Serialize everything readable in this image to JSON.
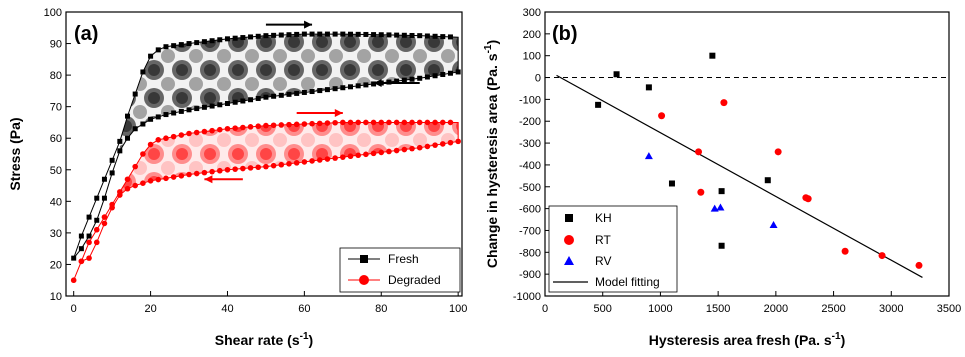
{
  "chart_data": [
    {
      "type": "line",
      "panel_label": "(a)",
      "xlabel": "Shear rate (s",
      "xlabel_sup": "-1",
      "xlabel_end": ")",
      "ylabel": "Stress (Pa)",
      "xlim": [
        -2,
        101
      ],
      "ylim": [
        10,
        100
      ],
      "xticks": [
        0,
        20,
        40,
        60,
        80,
        100
      ],
      "yticks": [
        10,
        20,
        30,
        40,
        50,
        60,
        70,
        80,
        90,
        100
      ],
      "legend_position": "bottom-right",
      "series": [
        {
          "name": "Fresh",
          "color": "#000000",
          "marker": "square",
          "up": [
            [
              0,
              22
            ],
            [
              2,
              29
            ],
            [
              4,
              35
            ],
            [
              6,
              41
            ],
            [
              8,
              47
            ],
            [
              10,
              53
            ],
            [
              12,
              59
            ],
            [
              14,
              67
            ],
            [
              16,
              74
            ],
            [
              18,
              81
            ],
            [
              20,
              86
            ],
            [
              22,
              88
            ],
            [
              24,
              89
            ],
            [
              30,
              90
            ],
            [
              40,
              91.5
            ],
            [
              50,
              92.5
            ],
            [
              60,
              93
            ],
            [
              70,
              93
            ],
            [
              80,
              92.8
            ],
            [
              90,
              92.5
            ],
            [
              100,
              92
            ]
          ],
          "down": [
            [
              100,
              81
            ],
            [
              90,
              79
            ],
            [
              80,
              77.5
            ],
            [
              70,
              76
            ],
            [
              60,
              74.5
            ],
            [
              50,
              73
            ],
            [
              40,
              71
            ],
            [
              30,
              69
            ],
            [
              24,
              67.5
            ],
            [
              20,
              66
            ],
            [
              16,
              63
            ],
            [
              14,
              60
            ],
            [
              12,
              56
            ],
            [
              10,
              49
            ],
            [
              8,
              41
            ],
            [
              6,
              34
            ],
            [
              4,
              29
            ],
            [
              2,
              25
            ],
            [
              0,
              22
            ]
          ]
        },
        {
          "name": "Degraded",
          "color": "#ff0000",
          "marker": "circle",
          "up": [
            [
              0,
              15
            ],
            [
              2,
              21
            ],
            [
              4,
              27
            ],
            [
              6,
              31
            ],
            [
              8,
              35
            ],
            [
              10,
              39
            ],
            [
              12,
              43
            ],
            [
              14,
              47
            ],
            [
              16,
              51
            ],
            [
              18,
              55
            ],
            [
              20,
              58
            ],
            [
              22,
              59.5
            ],
            [
              24,
              60
            ],
            [
              30,
              61.5
            ],
            [
              40,
              63
            ],
            [
              50,
              64
            ],
            [
              60,
              64.5
            ],
            [
              70,
              65
            ],
            [
              80,
              65
            ],
            [
              90,
              65
            ],
            [
              100,
              65
            ]
          ],
          "down": [
            [
              100,
              59
            ],
            [
              90,
              57
            ],
            [
              80,
              55.5
            ],
            [
              70,
              54
            ],
            [
              60,
              52.5
            ],
            [
              50,
              51
            ],
            [
              40,
              50
            ],
            [
              30,
              48.5
            ],
            [
              20,
              46.5
            ],
            [
              16,
              45
            ],
            [
              14,
              44
            ],
            [
              12,
              42
            ],
            [
              10,
              38
            ],
            [
              8,
              33
            ],
            [
              6,
              27
            ],
            [
              4,
              22
            ],
            [
              2,
              21
            ],
            [
              0,
              15
            ]
          ]
        }
      ],
      "arrows": [
        {
          "color": "#000000",
          "x": [
            50,
            62
          ],
          "y": 96,
          "direction": "right"
        },
        {
          "color": "#000000",
          "x": [
            78,
            90
          ],
          "y": 77.5,
          "direction": "left"
        },
        {
          "color": "#ff0000",
          "x": [
            58,
            70
          ],
          "y": 68,
          "direction": "right"
        },
        {
          "color": "#ff0000",
          "x": [
            34,
            44
          ],
          "y": 47,
          "direction": "left"
        }
      ]
    },
    {
      "type": "scatter",
      "panel_label": "(b)",
      "xlabel": "Hysteresis area fresh (Pa. s",
      "xlabel_sup": "-1",
      "xlabel_end": ")",
      "ylabel": "Change in hysteresis area (Pa. s",
      "ylabel_sup": "-1",
      "ylabel_end": ")",
      "xlim": [
        0,
        3500
      ],
      "ylim": [
        -1000,
        300
      ],
      "xticks": [
        0,
        500,
        1000,
        1500,
        2000,
        2500,
        3000,
        3500
      ],
      "yticks": [
        300,
        200,
        100,
        0,
        -100,
        -200,
        -300,
        -400,
        -500,
        -600,
        -700,
        -800,
        -900,
        -1000
      ],
      "legend_position": "bottom-left",
      "reference_line": 0,
      "series": [
        {
          "name": "KH",
          "color": "#000000",
          "marker": "square",
          "points": [
            [
              460,
              -125
            ],
            [
              620,
              15
            ],
            [
              900,
              -45
            ],
            [
              1100,
              -485
            ],
            [
              1450,
              100
            ],
            [
              1530,
              -520
            ],
            [
              1530,
              -770
            ],
            [
              1930,
              -470
            ]
          ]
        },
        {
          "name": "RT",
          "color": "#ff0000",
          "marker": "circle",
          "points": [
            [
              1010,
              -175
            ],
            [
              1330,
              -340
            ],
            [
              1350,
              -525
            ],
            [
              1550,
              -115
            ],
            [
              2020,
              -340
            ],
            [
              2260,
              -550
            ],
            [
              2280,
              -555
            ],
            [
              2600,
              -795
            ],
            [
              2920,
              -815
            ],
            [
              3240,
              -860
            ]
          ]
        },
        {
          "name": "RV",
          "color": "#0000ff",
          "marker": "triangle",
          "points": [
            [
              900,
              -360
            ],
            [
              1470,
              -600
            ],
            [
              1520,
              -595
            ],
            [
              1980,
              -675
            ]
          ]
        }
      ],
      "fit": {
        "name": "Model fitting",
        "color": "#000000",
        "x": [
          100,
          3270
        ],
        "y": [
          10,
          -915
        ]
      }
    }
  ]
}
